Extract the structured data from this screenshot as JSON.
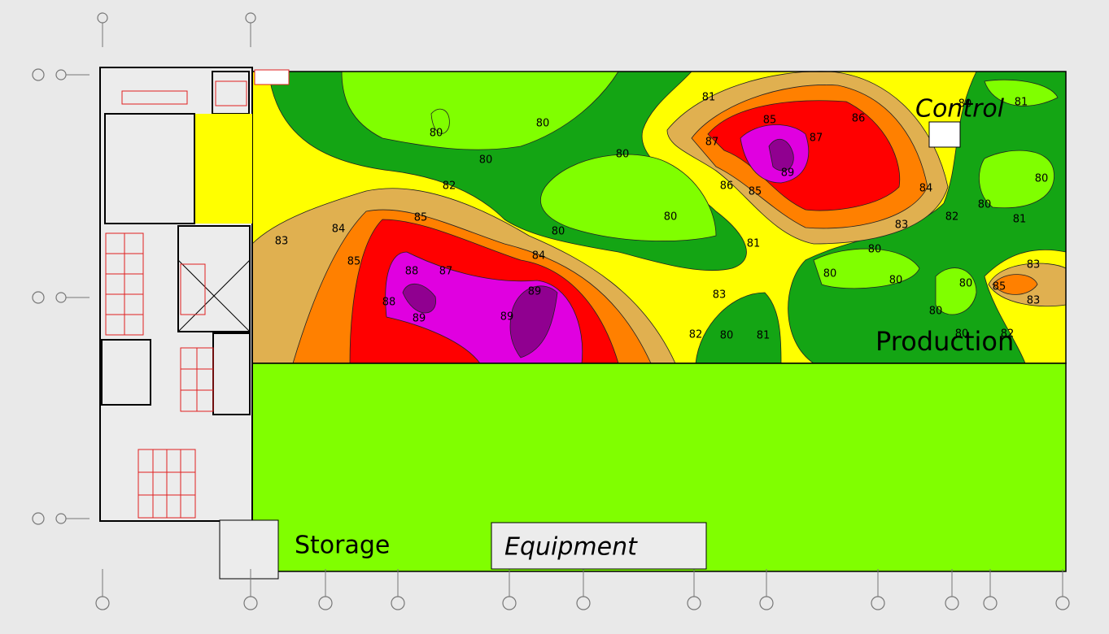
{
  "rooms": {
    "control": "Control",
    "production": "Production",
    "storage": "Storage",
    "equipment": "Equipment"
  },
  "contour_labels": [
    81,
    85,
    86,
    87,
    87,
    89,
    86,
    85,
    84,
    83,
    82,
    80,
    81,
    80,
    81,
    80,
    80,
    80,
    80,
    80,
    82,
    85,
    84,
    83,
    85,
    88,
    87,
    84,
    89,
    88,
    89,
    89,
    80,
    80,
    81,
    83,
    82,
    80,
    81,
    80,
    80,
    80,
    80,
    85,
    83,
    83,
    80,
    80,
    82
  ]
}
